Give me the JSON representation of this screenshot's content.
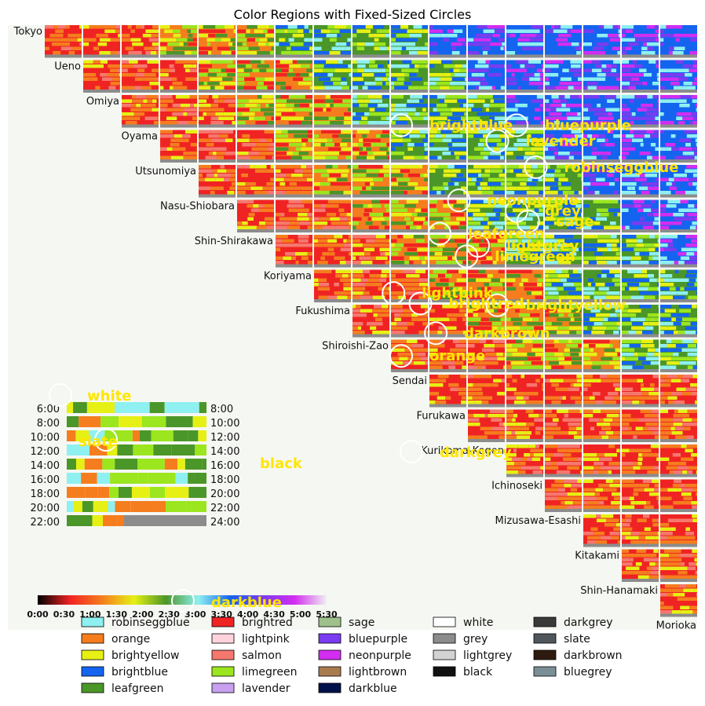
{
  "chart_data": {
    "type": "heatmap",
    "title": "Color Regions with Fixed-Sized Circles",
    "stations": [
      "Tokyo",
      "Ueno",
      "Omiya",
      "Oyama",
      "Utsunomiya",
      "Nasu-Shiobara",
      "Shin-Shirakawa",
      "Koriyama",
      "Fukushima",
      "Shiroishi-Zao",
      "Sendai",
      "Furukawa",
      "Kurikoma-Kogen",
      "Ichinoseki",
      "Mizusawa-Esashi",
      "Kitakami",
      "Shin-Hanamaki",
      "Morioka"
    ],
    "time_rows": [
      {
        "left": "6:00",
        "right": "8:00"
      },
      {
        "left": "8:00",
        "right": "10:00"
      },
      {
        "left": "10:00",
        "right": "12:00"
      },
      {
        "left": "12:00",
        "right": "14:00"
      },
      {
        "left": "14:00",
        "right": "16:00"
      },
      {
        "left": "16:00",
        "right": "18:00"
      },
      {
        "left": "18:00",
        "right": "20:00"
      },
      {
        "left": "20:00",
        "right": "22:00"
      },
      {
        "left": "22:00",
        "right": "24:00"
      }
    ],
    "colorbar_ticks": [
      "0:00",
      "0:30",
      "1:00",
      "1:30",
      "2:00",
      "2:30",
      "3:00",
      "3:30",
      "4:00",
      "4:30",
      "5:00",
      "5:30"
    ],
    "region_labels": [
      {
        "label": "brightblue",
        "col": 10,
        "row": 3
      },
      {
        "label": "bluepurple",
        "col": 13,
        "row": 3
      },
      {
        "label": "lavender",
        "col": 12.5,
        "row": 3.45
      },
      {
        "label": "robinseggblue",
        "col": 13.5,
        "row": 4.2
      },
      {
        "label": "neonpurple",
        "col": 11.5,
        "row": 5.15
      },
      {
        "label": "grey",
        "col": 13,
        "row": 5.45
      },
      {
        "label": "sage",
        "col": 13.3,
        "row": 5.75
      },
      {
        "label": "leafgreen",
        "col": 11,
        "row": 6.1
      },
      {
        "label": "lightgrey",
        "col": 12,
        "row": 6.45
      },
      {
        "label": "limegreen",
        "col": 11.7,
        "row": 6.75
      },
      {
        "label": "lightpink",
        "col": 9.8,
        "row": 7.8
      },
      {
        "label": "brightred",
        "col": 10.5,
        "row": 8.1
      },
      {
        "label": "brightyellow",
        "col": 12.5,
        "row": 8.15
      },
      {
        "label": "darkbrown",
        "col": 10.9,
        "row": 8.95
      },
      {
        "label": "orange",
        "col": 10,
        "row": 9.6
      }
    ],
    "inset_labels": [
      "white",
      "slate",
      "black",
      "darkblue"
    ],
    "circle_label_extra": [
      "darkgrey"
    ],
    "legend_columns": [
      [
        {
          "name": "robinseggblue",
          "color": "#8ef0f0"
        },
        {
          "name": "orange",
          "color": "#f57d1e"
        },
        {
          "name": "brightyellow",
          "color": "#e6f014"
        },
        {
          "name": "brightblue",
          "color": "#1464f0"
        },
        {
          "name": "leafgreen",
          "color": "#4b9628"
        }
      ],
      [
        {
          "name": "brightred",
          "color": "#f02323"
        },
        {
          "name": "lightpink",
          "color": "#ffd2dc"
        },
        {
          "name": "salmon",
          "color": "#f5786e"
        },
        {
          "name": "limegreen",
          "color": "#9be61e"
        },
        {
          "name": "lavender",
          "color": "#c8a0f0"
        }
      ],
      [
        {
          "name": "sage",
          "color": "#9fc08a"
        },
        {
          "name": "bluepurple",
          "color": "#7a3cf0"
        },
        {
          "name": "neonpurple",
          "color": "#d22df0"
        },
        {
          "name": "lightbrown",
          "color": "#a87b4f"
        },
        {
          "name": "darkblue",
          "color": "#00104a"
        }
      ],
      [
        {
          "name": "white",
          "color": "#ffffff"
        },
        {
          "name": "grey",
          "color": "#8c8c8c"
        },
        {
          "name": "lightgrey",
          "color": "#d3d3d3"
        },
        {
          "name": "black",
          "color": "#111111"
        }
      ],
      [
        {
          "name": "darkgrey",
          "color": "#3a3a3a"
        },
        {
          "name": "slate",
          "color": "#4f565c"
        },
        {
          "name": "darkbrown",
          "color": "#2e1a0e"
        },
        {
          "name": "bluegrey",
          "color": "#7a8f96"
        }
      ]
    ]
  }
}
